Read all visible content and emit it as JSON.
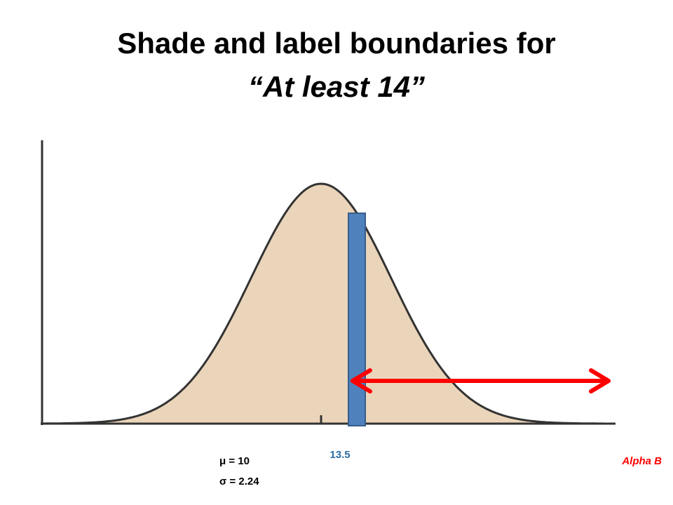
{
  "title": {
    "line1": "Shade and label boundaries for",
    "line2": "“At least 14”"
  },
  "labels": {
    "boundary": "13.5",
    "mean": "μ = 10",
    "sd": "σ = 2.24",
    "credit": "Alpha B"
  }
}
